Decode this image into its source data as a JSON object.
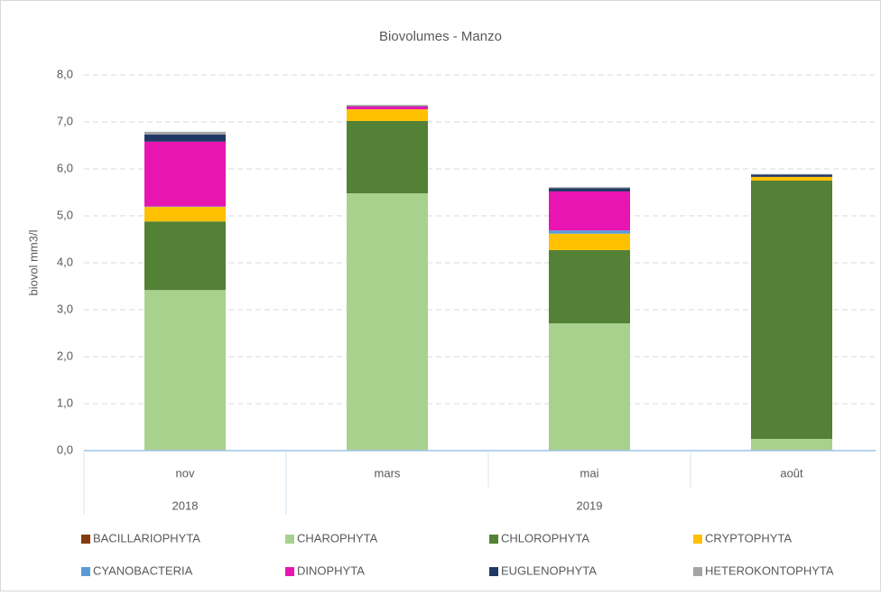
{
  "chart_data": {
    "type": "stacked_bar",
    "title": "Biovolumes - Manzo",
    "y_label": "biovol mm3/l",
    "categories": [
      "nov",
      "mars",
      "mai",
      "août"
    ],
    "category_groups": [
      {
        "label": "2018",
        "start": 0,
        "end": 0
      },
      {
        "label": "2019",
        "start": 1,
        "end": 3
      }
    ],
    "series": [
      {
        "name": "BACILLARIOPHYTA",
        "color": "#843c0c",
        "values": [
          0,
          0,
          0,
          0
        ]
      },
      {
        "name": "CHAROPHYTA",
        "color": "#a9d18e",
        "values": [
          3.42,
          5.48,
          2.71,
          0.25
        ]
      },
      {
        "name": "CHLOROPHYTA",
        "color": "#538135",
        "values": [
          1.46,
          1.54,
          1.56,
          5.5
        ]
      },
      {
        "name": "CRYPTOPHYTA",
        "color": "#ffc000",
        "values": [
          0.31,
          0.25,
          0.35,
          0.08
        ]
      },
      {
        "name": "CYANOBACTERIA",
        "color": "#5b9bd5",
        "values": [
          0.01,
          0,
          0.07,
          0
        ]
      },
      {
        "name": "DINOPHYTA",
        "color": "#e815b3",
        "values": [
          1.38,
          0.06,
          0.83,
          0
        ]
      },
      {
        "name": "EUGLENOPHYTA",
        "color": "#203864",
        "values": [
          0.15,
          0.01,
          0.07,
          0.05
        ]
      },
      {
        "name": "HETEROKONTOPHYTA",
        "color": "#a5a5a5",
        "values": [
          0.06,
          0.02,
          0.02,
          0.01
        ]
      }
    ],
    "ylim": [
      0,
      8
    ],
    "yticks": [
      {
        "value": 0,
        "label": "0,0"
      },
      {
        "value": 1,
        "label": "1,0"
      },
      {
        "value": 2,
        "label": "2,0"
      },
      {
        "value": 3,
        "label": "3,0"
      },
      {
        "value": 4,
        "label": "4,0"
      },
      {
        "value": 5,
        "label": "5,0"
      },
      {
        "value": 6,
        "label": "6,0"
      },
      {
        "value": 7,
        "label": "7,0"
      },
      {
        "value": 8,
        "label": "8,0"
      }
    ],
    "grid": true,
    "legend": "bottom"
  }
}
